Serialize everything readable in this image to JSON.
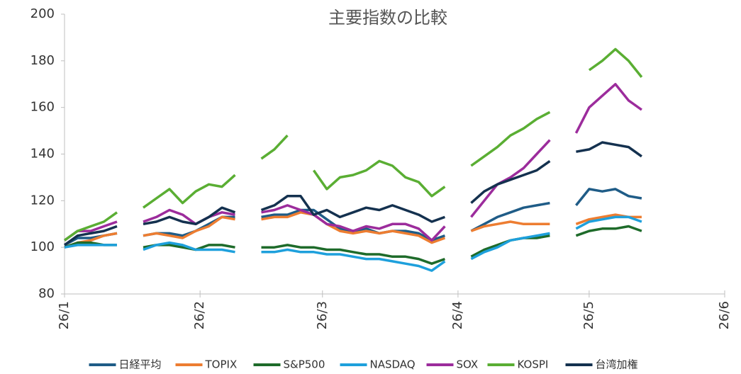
{
  "chart_data": {
    "type": "line",
    "title": "主要指数の比較",
    "x": [
      0,
      3,
      6,
      9,
      12,
      15,
      18,
      21,
      24,
      27,
      30,
      33,
      36,
      39,
      42,
      45,
      48,
      51,
      54,
      57,
      60,
      63,
      66,
      69,
      72,
      75,
      78,
      81,
      84,
      87,
      90,
      93,
      96,
      99,
      102,
      105,
      108,
      111,
      114,
      117,
      120,
      123,
      126,
      129,
      132
    ],
    "xlim": [
      0,
      151
    ],
    "xticks": [
      {
        "value": 0,
        "label": "26/1"
      },
      {
        "value": 31,
        "label": "26/2"
      },
      {
        "value": 59,
        "label": "26/3"
      },
      {
        "value": 90,
        "label": "26/4"
      },
      {
        "value": 120,
        "label": "26/5"
      },
      {
        "value": 151,
        "label": "26/6"
      }
    ],
    "ylim": [
      80,
      200
    ],
    "yticks": [
      80,
      100,
      120,
      140,
      160,
      180,
      200
    ],
    "grid": false,
    "legend": "bottom",
    "series": [
      {
        "name": "日経平均",
        "color": "#1f5c87",
        "values": [
          101,
          104,
          104,
          105,
          106,
          null,
          105,
          106,
          106,
          105,
          107,
          110,
          113,
          113,
          null,
          113,
          114,
          114,
          116,
          116,
          112,
          108,
          107,
          108,
          106,
          107,
          107,
          106,
          103,
          105,
          null,
          107,
          110,
          113,
          115,
          117,
          118,
          119,
          null,
          118,
          125,
          124,
          125,
          122,
          121
        ]
      },
      {
        "name": "TOPIX",
        "color": "#ed7d31",
        "values": [
          100,
          102,
          103,
          105,
          106,
          null,
          105,
          106,
          105,
          104,
          107,
          109,
          113,
          112,
          null,
          112,
          113,
          113,
          115,
          114,
          110,
          107,
          106,
          107,
          106,
          107,
          106,
          105,
          102,
          104,
          null,
          107,
          109,
          110,
          111,
          110,
          110,
          110,
          null,
          110,
          112,
          113,
          114,
          113,
          113
        ]
      },
      {
        "name": "S&P500",
        "color": "#1e6b2a",
        "values": [
          100,
          102,
          102,
          101,
          101,
          null,
          100,
          101,
          101,
          100,
          99,
          101,
          101,
          100,
          null,
          100,
          100,
          101,
          100,
          100,
          99,
          99,
          98,
          97,
          97,
          96,
          96,
          95,
          93,
          95,
          null,
          96,
          99,
          101,
          103,
          104,
          104,
          105,
          null,
          105,
          107,
          108,
          108,
          109,
          107
        ]
      },
      {
        "name": "NASDAQ",
        "color": "#1ea0dc",
        "values": [
          100,
          101,
          101,
          101,
          101,
          null,
          99,
          101,
          102,
          101,
          99,
          99,
          99,
          98,
          null,
          98,
          98,
          99,
          98,
          98,
          97,
          97,
          96,
          95,
          95,
          94,
          93,
          92,
          90,
          94,
          null,
          95,
          98,
          100,
          103,
          104,
          105,
          106,
          null,
          108,
          111,
          112,
          113,
          113,
          111
        ]
      },
      {
        "name": "SOX",
        "color": "#9c2c9c",
        "values": [
          103,
          107,
          107,
          109,
          111,
          null,
          111,
          113,
          116,
          114,
          110,
          113,
          115,
          114,
          null,
          115,
          116,
          118,
          116,
          114,
          110,
          109,
          107,
          109,
          108,
          110,
          110,
          108,
          103,
          109,
          null,
          113,
          120,
          127,
          130,
          134,
          140,
          146,
          null,
          149,
          160,
          165,
          170,
          163,
          159
        ]
      },
      {
        "name": "KOSPI",
        "color": "#5aae33",
        "values": [
          103,
          107,
          109,
          111,
          115,
          null,
          117,
          121,
          125,
          119,
          124,
          127,
          126,
          131,
          null,
          138,
          142,
          148,
          null,
          133,
          125,
          130,
          131,
          133,
          137,
          135,
          130,
          128,
          122,
          126,
          null,
          135,
          139,
          143,
          148,
          151,
          155,
          158,
          null,
          null,
          176,
          180,
          185,
          180,
          173
        ]
      },
      {
        "name": "台湾加権",
        "color": "#14314f",
        "values": [
          101,
          105,
          106,
          107,
          109,
          null,
          110,
          111,
          113,
          111,
          110,
          113,
          117,
          115,
          null,
          116,
          118,
          122,
          122,
          114,
          116,
          113,
          115,
          117,
          116,
          118,
          116,
          114,
          111,
          113,
          null,
          119,
          124,
          127,
          129,
          131,
          133,
          137,
          null,
          141,
          142,
          145,
          144,
          143,
          139
        ]
      }
    ]
  }
}
